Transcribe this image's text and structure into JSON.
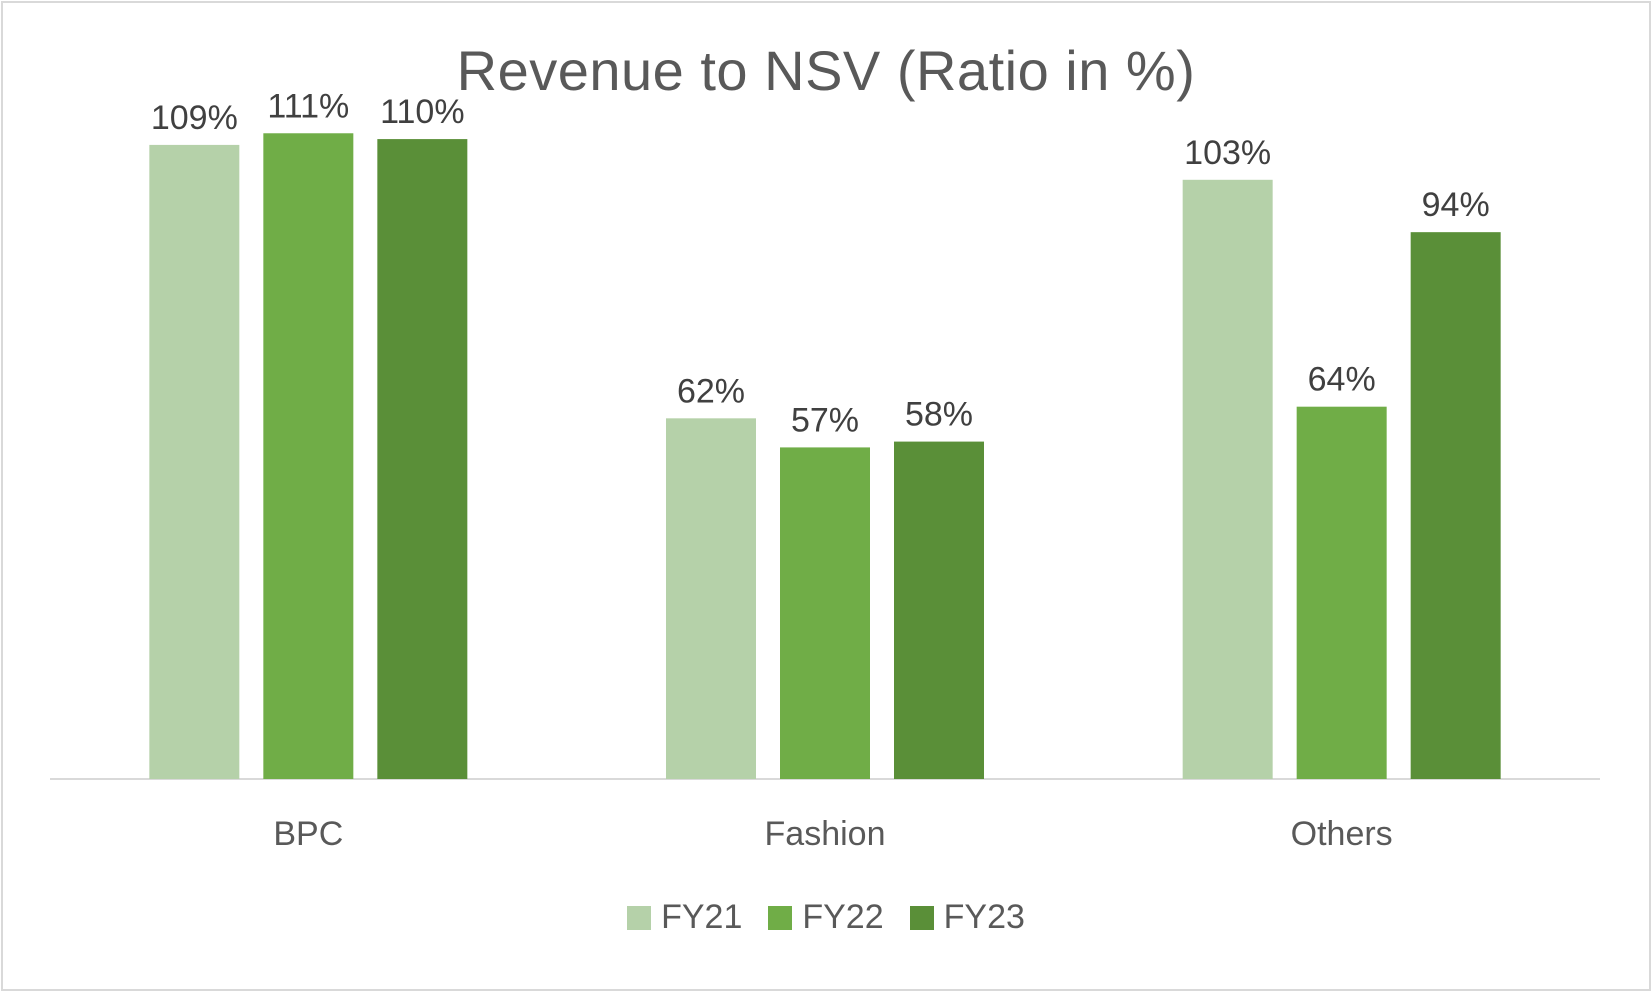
{
  "chart_data": {
    "type": "bar",
    "title": "Revenue to NSV (Ratio in %)",
    "xlabel": "",
    "ylabel": "",
    "categories": [
      "BPC",
      "Fashion",
      "Others"
    ],
    "series": [
      {
        "name": "FY21",
        "values": [
          109,
          62,
          103
        ],
        "color": "#b5d1a9"
      },
      {
        "name": "FY22",
        "values": [
          111,
          57,
          64
        ],
        "color": "#70ad47"
      },
      {
        "name": "FY23",
        "values": [
          110,
          58,
          94
        ],
        "color": "#5a8f38"
      }
    ],
    "value_suffix": "%",
    "data_labels": true,
    "ylim": [
      0,
      115
    ],
    "grid": false,
    "legend_position": "bottom"
  }
}
